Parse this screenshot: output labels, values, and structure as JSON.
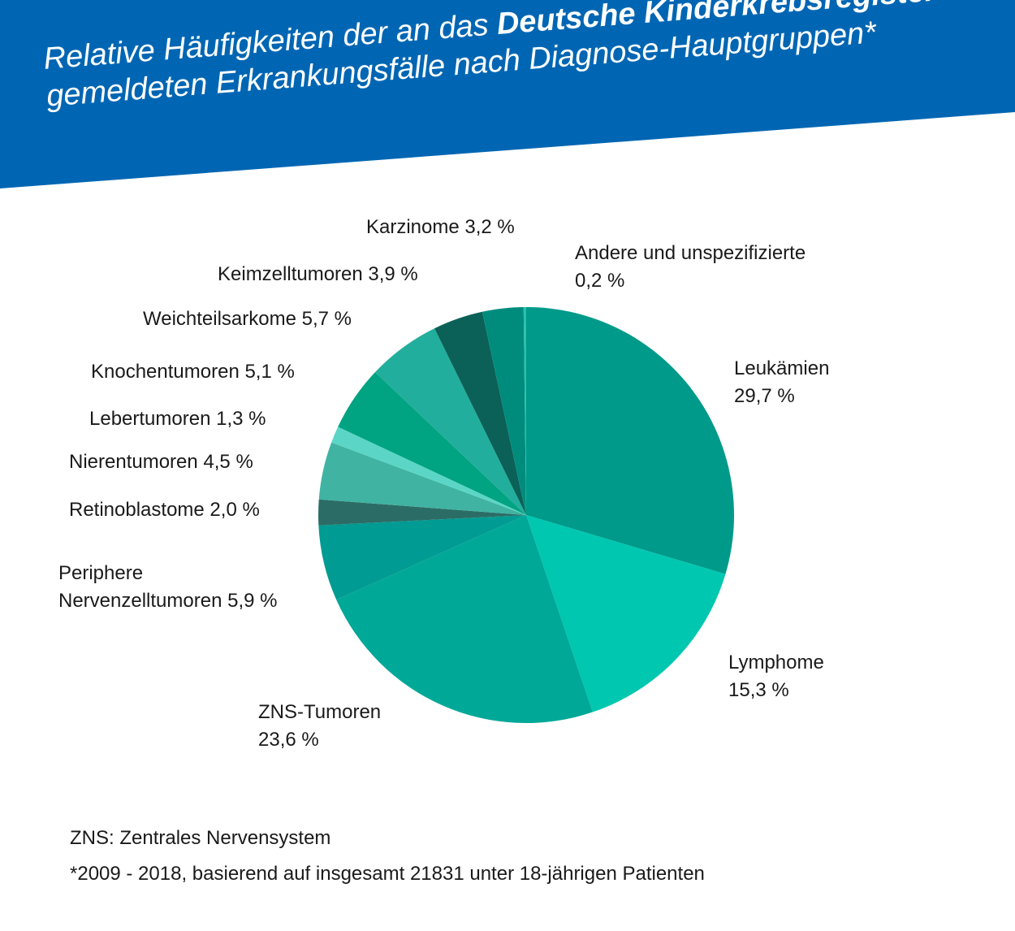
{
  "header": {
    "title_part1": "Relative Häufigkeiten der an das ",
    "title_bold": "Deutsche Kinderkrebsregister",
    "title_part2": "gemeldeten Erkrankungsfälle nach Diagnose-Hauptgruppen*",
    "banner_color": "#0066b3"
  },
  "chart_data": {
    "type": "pie",
    "title": "Relative Häufigkeiten der an das Deutsche Kinderkrebsregister gemeldeten Erkrankungsfälle nach Diagnose-Hauptgruppen*",
    "unit": "%",
    "slices": [
      {
        "name": "Leukämien",
        "value": 29.7,
        "value_label": "29,7 %",
        "color": "#009a8a"
      },
      {
        "name": "Lymphome",
        "value": 15.3,
        "value_label": "15,3 %",
        "color": "#00c7b0"
      },
      {
        "name": "ZNS-Tumoren",
        "value": 23.6,
        "value_label": "23,6 %",
        "color": "#00a898"
      },
      {
        "name": "Periphere Nervenzelltumoren",
        "value": 5.9,
        "value_label": "5,9 %",
        "color": "#009b92"
      },
      {
        "name": "Retinoblastome",
        "value": 2.0,
        "value_label": "2,0 %",
        "color": "#2b6d66"
      },
      {
        "name": "Nierentumoren",
        "value": 4.5,
        "value_label": "4,5 %",
        "color": "#40b3a2"
      },
      {
        "name": "Lebertumoren",
        "value": 1.3,
        "value_label": "1,3 %",
        "color": "#5bd6c6"
      },
      {
        "name": "Knochentumoren",
        "value": 5.1,
        "value_label": "5,1 %",
        "color": "#00a382"
      },
      {
        "name": "Weichteilsarkome",
        "value": 5.7,
        "value_label": "5,7 %",
        "color": "#22ae9c"
      },
      {
        "name": "Keimzelltumoren",
        "value": 3.9,
        "value_label": "3,9 %",
        "color": "#0b6157"
      },
      {
        "name": "Karzinome",
        "value": 3.2,
        "value_label": "3,2 %",
        "color": "#008c7d"
      },
      {
        "name": "Andere und unspezifizierte",
        "value": 0.2,
        "value_label": "0,2 %",
        "color": "#2bbfae"
      }
    ]
  },
  "labels": {
    "leukaemien": {
      "line1": "Leukämien",
      "line2": "29,7 %"
    },
    "lymphome": {
      "line1": "Lymphome",
      "line2": "15,3 %"
    },
    "zns": {
      "line1": "ZNS-Tumoren",
      "line2": "23,6 %"
    },
    "periphere": {
      "line1": "Periphere",
      "line2": "Nervenzelltumoren 5,9 %"
    },
    "retino": "Retinoblastome 2,0 %",
    "nieren": "Nierentumoren 4,5 %",
    "leber": "Lebertumoren 1,3 %",
    "knochen": "Knochentumoren 5,1 %",
    "weichteil": "Weichteilsarkome 5,7 %",
    "keimzell": "Keimzelltumoren 3,9 %",
    "karzinome": "Karzinome 3,2 %",
    "andere": {
      "line1": "Andere und unspezifizierte",
      "line2": "0,2 %"
    }
  },
  "footer": {
    "note1": "ZNS: Zentrales Nervensystem",
    "note2": "*2009 - 2018, basierend auf insgesamt 21831 unter 18-jährigen Patienten"
  }
}
